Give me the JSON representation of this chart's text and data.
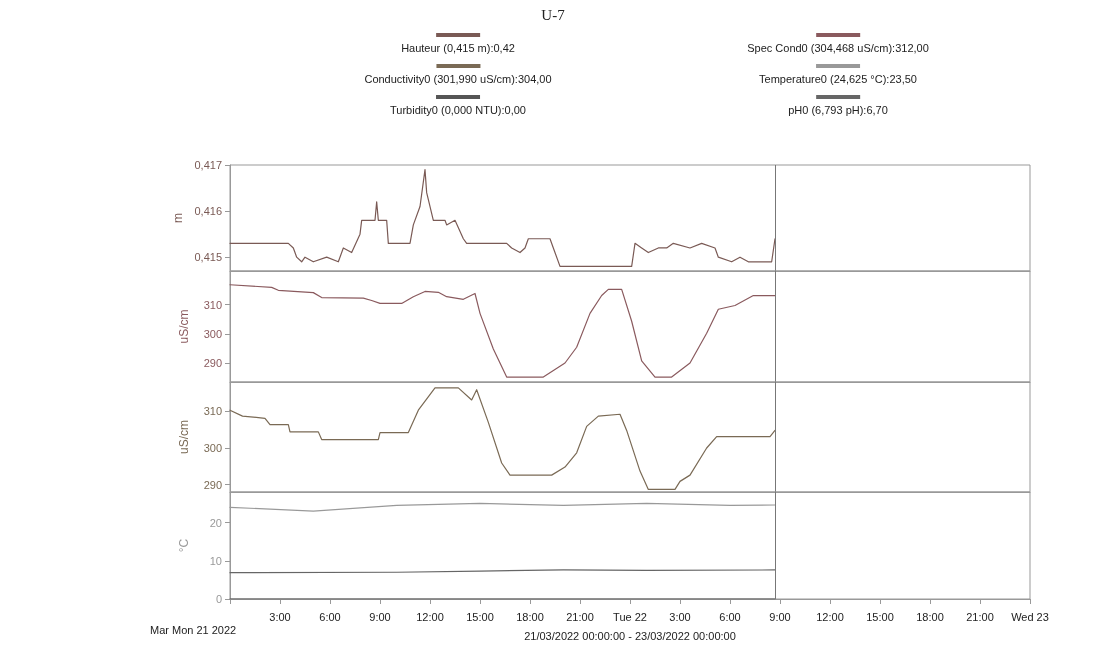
{
  "chart_data": [
    {
      "type": "line",
      "title": "U-7",
      "ylabel": "m",
      "xlim": [
        "2022-03-21T00:00",
        "2022-03-23T00:00"
      ],
      "ylim": [
        0.4147,
        0.417
      ],
      "yticks": [
        {
          "value": 0.415,
          "label": "0,415"
        },
        {
          "value": 0.416,
          "label": "0,416"
        },
        {
          "value": 0.417,
          "label": "0,417"
        }
      ],
      "tick_labels": "y",
      "legend": "top",
      "ref_lines": [
        {
          "axis": "x",
          "value": "2022-03-22T08:42"
        }
      ],
      "series": [
        {
          "name": "Hauteur (0,415 m):0,42",
          "color": "#7a5a55",
          "x": [
            "2022-03-21T00:00",
            "2022-03-21T03:30",
            "2022-03-21T03:48",
            "2022-03-21T04:00",
            "2022-03-21T04:18",
            "2022-03-21T04:30",
            "2022-03-21T05:00",
            "2022-03-21T05:48",
            "2022-03-21T06:30",
            "2022-03-21T06:48",
            "2022-03-21T07:18",
            "2022-03-21T07:48",
            "2022-03-21T07:54",
            "2022-03-21T08:42",
            "2022-03-21T08:48",
            "2022-03-21T08:54",
            "2022-03-21T09:24",
            "2022-03-21T09:30",
            "2022-03-21T10:48",
            "2022-03-21T11:00",
            "2022-03-21T11:24",
            "2022-03-21T11:42",
            "2022-03-21T11:48",
            "2022-03-21T12:12",
            "2022-03-21T12:54",
            "2022-03-21T13:00",
            "2022-03-21T13:30",
            "2022-03-21T14:00",
            "2022-03-21T14:12",
            "2022-03-21T16:36",
            "2022-03-21T16:54",
            "2022-03-21T17:24",
            "2022-03-21T17:42",
            "2022-03-21T17:54",
            "2022-03-21T19:12",
            "2022-03-21T19:24",
            "2022-03-21T19:48",
            "2022-03-22T00:06",
            "2022-03-22T00:18",
            "2022-03-22T00:42",
            "2022-03-22T01:06",
            "2022-03-22T01:42",
            "2022-03-22T02:12",
            "2022-03-22T02:36",
            "2022-03-22T03:36",
            "2022-03-22T04:18",
            "2022-03-22T05:06",
            "2022-03-22T05:18",
            "2022-03-22T06:06",
            "2022-03-22T06:36",
            "2022-03-22T07:06",
            "2022-03-22T08:30",
            "2022-03-22T08:42"
          ],
          "values": [
            0.4153,
            0.4153,
            0.4152,
            0.415,
            0.4149,
            0.415,
            0.4149,
            0.415,
            0.4149,
            0.4152,
            0.4151,
            0.4155,
            0.4158,
            0.4158,
            0.4162,
            0.4158,
            0.4158,
            0.4153,
            0.4153,
            0.4157,
            0.4161,
            0.4169,
            0.4164,
            0.4158,
            0.4158,
            0.4157,
            0.4158,
            0.4154,
            0.4153,
            0.4153,
            0.4152,
            0.4151,
            0.4152,
            0.4154,
            0.4154,
            0.4152,
            0.4148,
            0.4148,
            0.4153,
            0.4152,
            0.4151,
            0.4152,
            0.4152,
            0.4153,
            0.4152,
            0.4153,
            0.4152,
            0.415,
            0.4149,
            0.415,
            0.4149,
            0.4149,
            0.4154
          ]
        }
      ]
    },
    {
      "type": "line",
      "ylabel": "uS/cm",
      "xlim": [
        "2022-03-21T00:00",
        "2022-03-23T00:00"
      ],
      "ylim": [
        283.5,
        321.5
      ],
      "yticks": [
        290,
        300,
        310
      ],
      "tick_labels": "y",
      "legend": "top",
      "ref_lines": [
        {
          "axis": "x",
          "value": "2022-03-22T08:42"
        }
      ],
      "series": [
        {
          "name": "Spec Cond0 (304,468 uS/cm):312,00",
          "color": "#8a5a5e",
          "x": [
            "2022-03-21T00:00",
            "2022-03-21T02:30",
            "2022-03-21T02:54",
            "2022-03-21T05:00",
            "2022-03-21T05:30",
            "2022-03-21T08:00",
            "2022-03-21T08:30",
            "2022-03-21T09:00",
            "2022-03-21T10:18",
            "2022-03-21T11:00",
            "2022-03-21T11:42",
            "2022-03-21T12:30",
            "2022-03-21T13:00",
            "2022-03-21T14:00",
            "2022-03-21T14:42",
            "2022-03-21T15:00",
            "2022-03-21T15:48",
            "2022-03-21T16:36",
            "2022-03-21T18:48",
            "2022-03-21T20:06",
            "2022-03-21T20:48",
            "2022-03-21T21:36",
            "2022-03-21T22:18",
            "2022-03-21T22:42",
            "2022-03-21T23:30",
            "2022-03-22T00:06",
            "2022-03-22T00:42",
            "2022-03-22T01:30",
            "2022-03-22T02:30",
            "2022-03-22T03:36",
            "2022-03-22T04:36",
            "2022-03-22T05:18",
            "2022-03-22T06:18",
            "2022-03-22T07:24",
            "2022-03-22T08:42"
          ],
          "values": [
            316.8,
            315.9,
            314.9,
            314.1,
            312.4,
            312.2,
            311.4,
            310.4,
            310.4,
            312.7,
            314.5,
            314.2,
            312.7,
            311.8,
            313.8,
            307.0,
            294.8,
            285.2,
            285.2,
            290,
            295.4,
            307,
            313.1,
            315.2,
            315.2,
            304.3,
            290.7,
            285.2,
            285.2,
            290,
            300.2,
            308.4,
            309.7,
            313.1,
            313.1
          ]
        }
      ]
    },
    {
      "type": "line",
      "ylabel": "uS/cm",
      "xlim": [
        "2022-03-21T00:00",
        "2022-03-23T00:00"
      ],
      "ylim": [
        288,
        318
      ],
      "yticks": [
        290,
        300,
        310
      ],
      "tick_labels": "y",
      "legend": "top",
      "ref_lines": [
        {
          "axis": "x",
          "value": "2022-03-22T08:42"
        }
      ],
      "series": [
        {
          "name": "Conductivity0 (301,990 uS/cm):304,00",
          "color": "#7a6a55",
          "x": [
            "2022-03-21T00:00",
            "2022-03-21T00:45",
            "2022-03-21T02:06",
            "2022-03-21T02:24",
            "2022-03-21T03:30",
            "2022-03-21T03:36",
            "2022-03-21T05:18",
            "2022-03-21T05:30",
            "2022-03-21T08:54",
            "2022-03-21T09:00",
            "2022-03-21T10:42",
            "2022-03-21T11:18",
            "2022-03-21T12:18",
            "2022-03-21T13:42",
            "2022-03-21T14:30",
            "2022-03-21T14:48",
            "2022-03-21T15:30",
            "2022-03-21T16:18",
            "2022-03-21T16:48",
            "2022-03-21T19:18",
            "2022-03-21T20:06",
            "2022-03-21T20:48",
            "2022-03-21T21:24",
            "2022-03-21T22:06",
            "2022-03-21T23:24",
            "2022-03-21T23:48",
            "2022-03-22T00:36",
            "2022-03-22T01:06",
            "2022-03-22T02:42",
            "2022-03-22T03:00",
            "2022-03-22T03:36",
            "2022-03-22T04:36",
            "2022-03-22T05:12",
            "2022-03-22T08:24",
            "2022-03-22T08:42"
          ],
          "values": [
            310.3,
            308.7,
            308.1,
            306.4,
            306.4,
            304.4,
            304.4,
            302.3,
            302.3,
            304.2,
            304.2,
            310.3,
            316.4,
            316.4,
            313.1,
            315.9,
            307,
            295.9,
            292.6,
            292.6,
            294.8,
            298.7,
            305.9,
            308.7,
            309.2,
            304.8,
            293.7,
            288.7,
            288.7,
            290.9,
            292.6,
            300,
            303.1,
            303.1,
            304.8
          ]
        }
      ]
    },
    {
      "type": "line",
      "ylabel": "°C",
      "xlabel": "21/03/2022 00:00:00 - 23/03/2022 00:00:00",
      "xlim": [
        "2022-03-21T00:00",
        "2022-03-23T00:00"
      ],
      "ylim": [
        0,
        28
      ],
      "yticks": [
        0,
        10,
        20
      ],
      "legend": "top",
      "annotations": [
        "Mar Mon 21 2022"
      ],
      "xticks": [
        {
          "value": "2022-03-21T00:00",
          "label": null
        },
        {
          "value": "2022-03-21T03:00",
          "label": "3:00"
        },
        {
          "value": "2022-03-21T06:00",
          "label": "6:00"
        },
        {
          "value": "2022-03-21T09:00",
          "label": "9:00"
        },
        {
          "value": "2022-03-21T12:00",
          "label": "12:00"
        },
        {
          "value": "2022-03-21T15:00",
          "label": "15:00"
        },
        {
          "value": "2022-03-21T18:00",
          "label": "18:00"
        },
        {
          "value": "2022-03-21T21:00",
          "label": "21:00"
        },
        {
          "value": "2022-03-22T00:00",
          "label": "Tue 22"
        },
        {
          "value": "2022-03-22T03:00",
          "label": "3:00"
        },
        {
          "value": "2022-03-22T06:00",
          "label": "6:00"
        },
        {
          "value": "2022-03-22T09:00",
          "label": "9:00"
        },
        {
          "value": "2022-03-22T12:00",
          "label": "12:00"
        },
        {
          "value": "2022-03-22T15:00",
          "label": "15:00"
        },
        {
          "value": "2022-03-22T18:00",
          "label": "18:00"
        },
        {
          "value": "2022-03-22T21:00",
          "label": "21:00"
        },
        {
          "value": "2022-03-23T00:00",
          "label": "Wed 23"
        }
      ],
      "ref_lines": [
        {
          "axis": "x",
          "value": "2022-03-22T08:42"
        }
      ],
      "series": [
        {
          "name": "Temperature0 (24,625 °C):23,50",
          "color": "#999999",
          "x": [
            "2022-03-21T00:00",
            "2022-03-21T05:00",
            "2022-03-21T10:00",
            "2022-03-21T15:00",
            "2022-03-21T20:00",
            "2022-03-22T01:00",
            "2022-03-22T06:00",
            "2022-03-22T08:42"
          ],
          "values": [
            24,
            23,
            24.5,
            25,
            24.5,
            25,
            24.5,
            24.6
          ]
        },
        {
          "name": "Turbidity0 (0,000 NTU):0,00",
          "color": "#555555",
          "x": [
            "2022-03-21T00:00",
            "2022-03-22T08:42"
          ],
          "values": [
            0,
            0
          ]
        },
        {
          "name": "pH0 (6,793 pH):6,70",
          "color": "#666666",
          "x": [
            "2022-03-21T00:00",
            "2022-03-21T10:00",
            "2022-03-21T15:00",
            "2022-03-21T20:00",
            "2022-03-22T01:00",
            "2022-03-22T08:42"
          ],
          "values": [
            6.9,
            7.0,
            7.3,
            7.6,
            7.5,
            7.6
          ]
        }
      ]
    }
  ]
}
